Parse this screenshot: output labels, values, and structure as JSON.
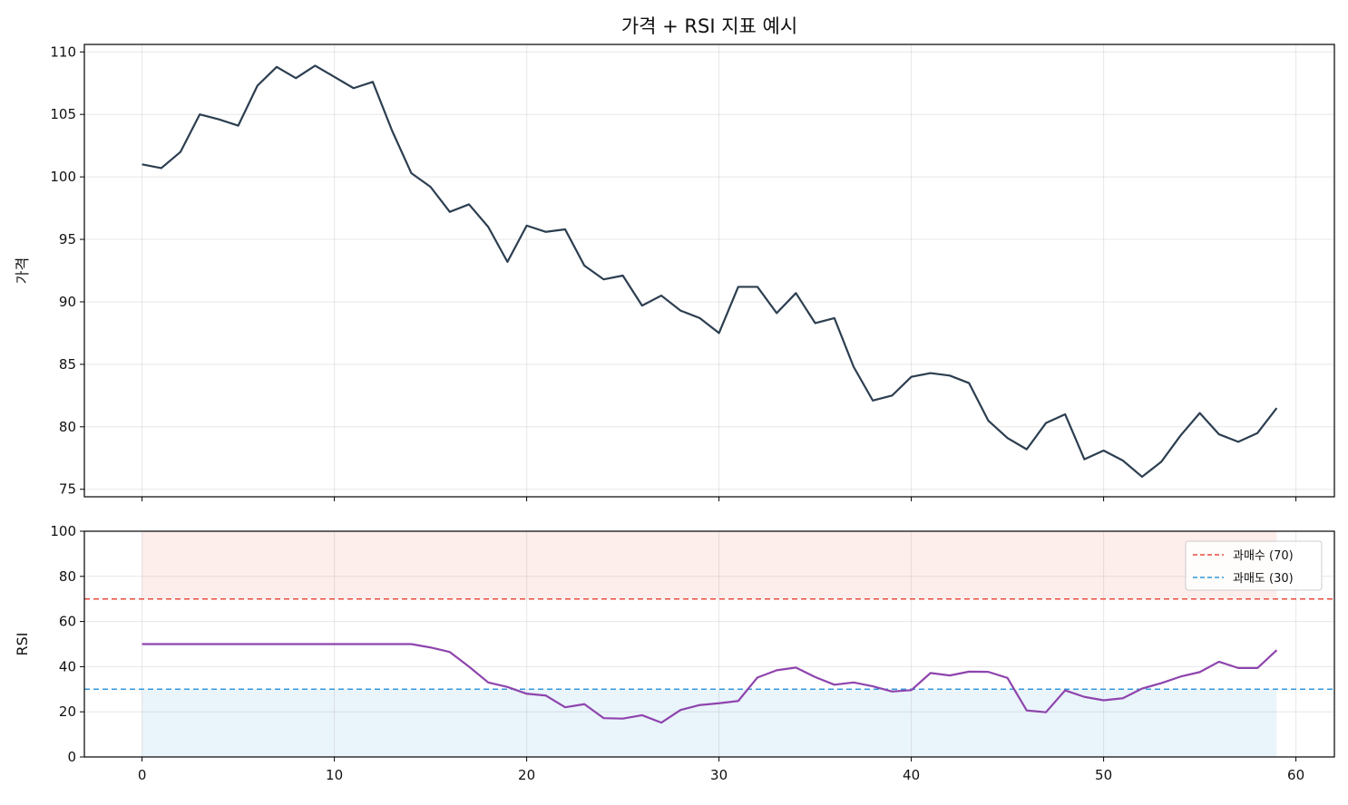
{
  "title": "가격 + RSI 지표 예시",
  "chart_data": [
    {
      "type": "line",
      "title": "가격 + RSI 지표 예시",
      "xlabel": "",
      "ylabel": "가격",
      "xlim": [
        -3,
        62
      ],
      "ylim": [
        74.4,
        110.6
      ],
      "xticks": [
        0,
        10,
        20,
        30,
        40,
        50,
        60
      ],
      "yticks": [
        75,
        80,
        85,
        90,
        95,
        100,
        105,
        110
      ],
      "grid": true,
      "series": [
        {
          "color": "#2c3e50",
          "x": [
            0,
            1,
            2,
            3,
            4,
            5,
            6,
            7,
            8,
            9,
            10,
            11,
            12,
            13,
            14,
            15,
            16,
            17,
            18,
            19,
            20,
            21,
            22,
            23,
            24,
            25,
            26,
            27,
            28,
            29,
            30,
            31,
            32,
            33,
            34,
            35,
            36,
            37,
            38,
            39,
            40,
            41,
            42,
            43,
            44,
            45,
            46,
            47,
            48,
            49,
            50,
            51,
            52,
            53,
            54,
            55,
            56,
            57,
            58,
            59
          ],
          "values": [
            101.0,
            100.7,
            102.0,
            105.0,
            104.6,
            104.1,
            107.3,
            108.8,
            107.9,
            108.9,
            108.0,
            107.1,
            107.6,
            103.7,
            100.3,
            99.2,
            97.2,
            97.8,
            96.0,
            93.2,
            96.1,
            95.6,
            95.8,
            92.9,
            91.8,
            92.1,
            89.7,
            90.5,
            89.3,
            88.7,
            87.5,
            91.2,
            91.2,
            89.1,
            90.7,
            88.3,
            88.7,
            84.8,
            82.1,
            82.5,
            84.0,
            84.3,
            84.1,
            83.5,
            80.5,
            79.1,
            78.2,
            80.3,
            81.0,
            77.4,
            78.1,
            77.3,
            76.0,
            77.2,
            79.3,
            81.1,
            79.4,
            78.8,
            79.5,
            81.5
          ]
        }
      ]
    },
    {
      "type": "line",
      "xlabel": "",
      "ylabel": "RSI",
      "xlim": [
        -3,
        62
      ],
      "ylim": [
        0,
        100
      ],
      "xticks": [
        0,
        10,
        20,
        30,
        40,
        50,
        60
      ],
      "yticks": [
        0,
        20,
        40,
        60,
        80,
        100
      ],
      "grid": true,
      "legend_position": "top-right",
      "shaded_bands": [
        {
          "y_from": 70,
          "y_to": 100,
          "x_from": 0,
          "x_to": 59,
          "color": "#e74c3c",
          "opacity": 0.1
        },
        {
          "y_from": 0,
          "y_to": 30,
          "x_from": 0,
          "x_to": 59,
          "color": "#3498db",
          "opacity": 0.1
        }
      ],
      "reference_lines": [
        {
          "name": "과매수 (70)",
          "y": 70,
          "color": "#e74c3c",
          "style": "dashed"
        },
        {
          "name": "과매도 (30)",
          "y": 30,
          "color": "#3498db",
          "style": "dashed"
        }
      ],
      "series": [
        {
          "color": "#8e44ad",
          "x": [
            0,
            1,
            2,
            3,
            4,
            5,
            6,
            7,
            8,
            9,
            10,
            11,
            12,
            13,
            14,
            15,
            16,
            17,
            18,
            19,
            20,
            21,
            22,
            23,
            24,
            25,
            26,
            27,
            28,
            29,
            30,
            31,
            32,
            33,
            34,
            35,
            36,
            37,
            38,
            39,
            40,
            41,
            42,
            43,
            44,
            45,
            46,
            47,
            48,
            49,
            50,
            51,
            52,
            53,
            54,
            55,
            56,
            57,
            58,
            59
          ],
          "values": [
            50,
            50,
            50,
            50,
            50,
            50,
            50,
            50,
            50,
            50,
            50,
            50,
            50,
            50,
            50,
            48.5,
            46.5,
            40,
            33,
            31,
            28,
            27.2,
            22,
            23.4,
            17.2,
            17,
            18.5,
            15.2,
            20.8,
            23,
            23.8,
            24.8,
            35.2,
            38.4,
            39.6,
            35.4,
            32,
            33,
            31.3,
            29,
            29.6,
            37.2,
            36.1,
            37.8,
            37.7,
            35,
            20.6,
            19.8,
            29.5,
            26.6,
            25.1,
            26,
            30.3,
            32.7,
            35.6,
            37.6,
            42.2,
            39.4,
            39.4,
            47.3
          ]
        }
      ]
    }
  ]
}
